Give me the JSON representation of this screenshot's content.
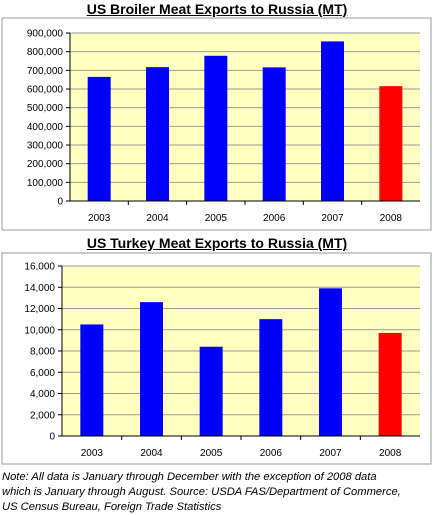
{
  "chart_data": [
    {
      "type": "bar",
      "title": "US Broiler Meat Exports to Russia (MT)",
      "categories": [
        "2003",
        "2004",
        "2005",
        "2006",
        "2007",
        "2008"
      ],
      "values": [
        665000,
        717000,
        778000,
        716000,
        855000,
        615000
      ],
      "bar_colors": [
        "#0000ff",
        "#0000ff",
        "#0000ff",
        "#0000ff",
        "#0000ff",
        "#ff0000"
      ],
      "ylim": [
        0,
        900000
      ],
      "yticks": [
        "0",
        "100,000",
        "200,000",
        "300,000",
        "400,000",
        "500,000",
        "600,000",
        "700,000",
        "800,000",
        "900,000"
      ],
      "plot_background": "#ffffc0",
      "grid": true,
      "legend": false
    },
    {
      "type": "bar",
      "title": "US Turkey Meat Exports to Russia (MT)",
      "categories": [
        "2003",
        "2004",
        "2005",
        "2006",
        "2007",
        "2008"
      ],
      "values": [
        10500,
        12600,
        8400,
        11000,
        13900,
        9700
      ],
      "bar_colors": [
        "#0000ff",
        "#0000ff",
        "#0000ff",
        "#0000ff",
        "#0000ff",
        "#ff0000"
      ],
      "ylim": [
        0,
        16000
      ],
      "yticks": [
        "0",
        "2,000",
        "4,000",
        "6,000",
        "8,000",
        "10,000",
        "12,000",
        "14,000",
        "16,000"
      ],
      "plot_background": "#ffffc0",
      "grid": true,
      "legend": false
    }
  ],
  "note": {
    "line1": "Note: All data is January through December with the exception of 2008 data",
    "line2": "which is January through August. Source: USDA FAS/Department of Commerce,",
    "line3": "US Census Bureau, Foreign Trade Statistics"
  }
}
